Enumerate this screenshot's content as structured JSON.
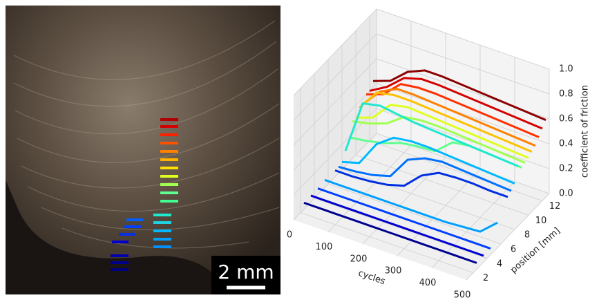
{
  "image": {
    "scale_bar": "2 mm"
  },
  "chart_data": {
    "type": "line3d",
    "x_label": "cycles",
    "y_label": "position [mm]",
    "z_label": "coefficient of friction",
    "xlim": [
      0,
      500
    ],
    "xticks": [
      0,
      100,
      200,
      300,
      400,
      500
    ],
    "ylim": [
      1,
      13
    ],
    "yticks": [
      2,
      4,
      6,
      8,
      10,
      12
    ],
    "zlim": [
      0,
      1
    ],
    "zticks": [
      {
        "value": 0,
        "label": "0.0"
      },
      0.2,
      0.4,
      0.6,
      0.8,
      {
        "value": 1,
        "label": "1.0"
      }
    ],
    "grid": true,
    "x": [
      0,
      50,
      100,
      150,
      200,
      250,
      300,
      350,
      400,
      450,
      500
    ],
    "series": [
      {
        "position": 12.5,
        "color": "#8b0000",
        "values": [
          0.45,
          0.5,
          0.62,
          0.68,
          0.68,
          0.67,
          0.66,
          0.65,
          0.64,
          0.63,
          0.62
        ]
      },
      {
        "position": 12,
        "color": "#d40000",
        "values": [
          0.4,
          0.48,
          0.6,
          0.64,
          0.64,
          0.63,
          0.62,
          0.61,
          0.6,
          0.59,
          0.58
        ]
      },
      {
        "position": 11.5,
        "color": "#ff3000",
        "values": [
          0.4,
          0.45,
          0.58,
          0.6,
          0.6,
          0.59,
          0.58,
          0.57,
          0.56,
          0.55,
          0.54
        ]
      },
      {
        "position": 11,
        "color": "#ff8000",
        "values": [
          0.35,
          0.5,
          0.57,
          0.57,
          0.56,
          0.55,
          0.54,
          0.53,
          0.52,
          0.51,
          0.5
        ]
      },
      {
        "position": 10.5,
        "color": "#ffc000",
        "values": [
          0.35,
          0.52,
          0.55,
          0.55,
          0.54,
          0.53,
          0.52,
          0.51,
          0.5,
          0.49,
          0.48
        ]
      },
      {
        "position": 10,
        "color": "#e0ff20",
        "values": [
          0.3,
          0.35,
          0.5,
          0.53,
          0.52,
          0.51,
          0.5,
          0.49,
          0.48,
          0.47,
          0.46
        ]
      },
      {
        "position": 9.5,
        "color": "#a0ff50",
        "values": [
          0.3,
          0.33,
          0.38,
          0.48,
          0.5,
          0.5,
          0.49,
          0.48,
          0.47,
          0.46,
          0.45
        ]
      },
      {
        "position": 9,
        "color": "#60ff90",
        "values": [
          0.2,
          0.22,
          0.25,
          0.3,
          0.32,
          0.33,
          0.45,
          0.47,
          0.46,
          0.45,
          0.44
        ]
      },
      {
        "position": 8.5,
        "color": "#20e8d0",
        "values": [
          0.12,
          0.55,
          0.58,
          0.56,
          0.54,
          0.53,
          0.52,
          0.51,
          0.5,
          0.49,
          0.48
        ]
      },
      {
        "position": 8,
        "color": "#00b8ff",
        "values": [
          0.06,
          0.1,
          0.3,
          0.4,
          0.42,
          0.42,
          0.41,
          0.4,
          0.39,
          0.38,
          0.37
        ]
      },
      {
        "position": 7.5,
        "color": "#0070ff",
        "values": [
          0.05,
          0.06,
          0.08,
          0.12,
          0.3,
          0.36,
          0.38,
          0.37,
          0.36,
          0.35,
          0.34
        ]
      },
      {
        "position": 7,
        "color": "#0030e0",
        "values": [
          0.05,
          0.05,
          0.06,
          0.08,
          0.12,
          0.25,
          0.32,
          0.33,
          0.33,
          0.32,
          0.32
        ]
      },
      {
        "position": 5.5,
        "color": "#00a0ff",
        "values": [
          0.06,
          0.06,
          0.06,
          0.06,
          0.06,
          0.06,
          0.06,
          0.06,
          0.07,
          0.08,
          0.2
        ]
      },
      {
        "position": 4.5,
        "color": "#0040ff",
        "values": [
          0.05,
          0.05,
          0.05,
          0.05,
          0.05,
          0.05,
          0.05,
          0.05,
          0.05,
          0.05,
          0.05
        ]
      },
      {
        "position": 3.5,
        "color": "#0000d0",
        "values": [
          0.05,
          0.05,
          0.05,
          0.05,
          0.05,
          0.05,
          0.05,
          0.05,
          0.05,
          0.05,
          0.05
        ]
      },
      {
        "position": 2.5,
        "color": "#000090",
        "values": [
          0.05,
          0.05,
          0.05,
          0.05,
          0.05,
          0.05,
          0.05,
          0.05,
          0.05,
          0.05,
          0.05
        ]
      }
    ]
  }
}
